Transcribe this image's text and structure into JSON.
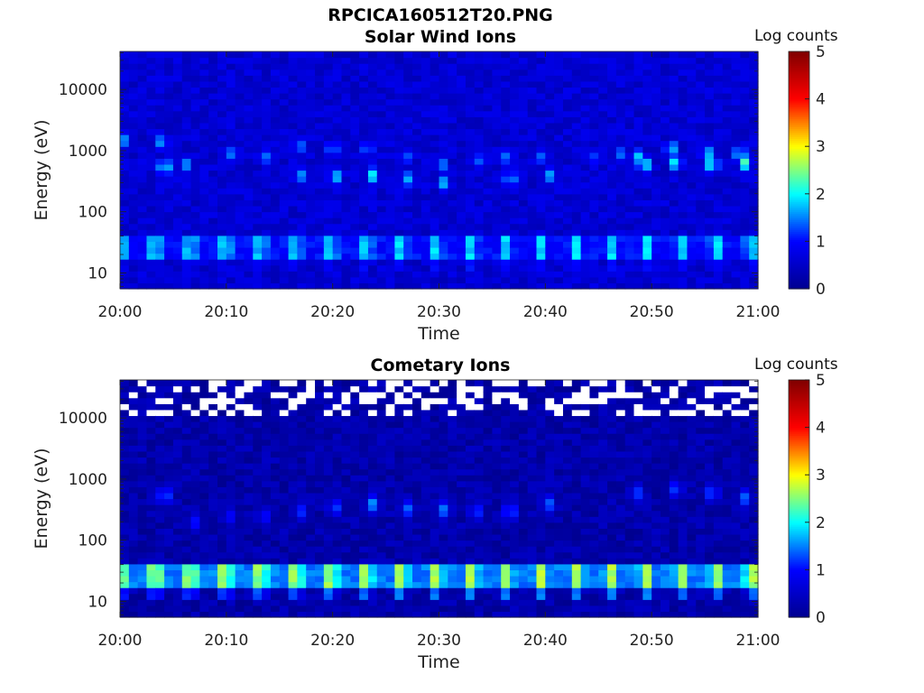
{
  "figure_title": "RPCICA160512T20.PNG",
  "colors": {
    "colormap": [
      "#00008f",
      "#0000ff",
      "#00ffff",
      "#ffff00",
      "#ff0000",
      "#800000"
    ],
    "missing": "#ffffff",
    "axis": "#222222"
  },
  "chart_data": [
    {
      "type": "heatmap",
      "title": "Solar Wind Ions",
      "xlabel": "Time",
      "ylabel": "Energy (eV)",
      "xlim": [
        "20:00",
        "21:00"
      ],
      "xticks": [
        "20:00",
        "20:10",
        "20:20",
        "20:30",
        "20:40",
        "20:50",
        "21:00"
      ],
      "yscale": "log",
      "ylim": [
        5.5,
        42000
      ],
      "yticks": [
        10,
        100,
        1000,
        10000
      ],
      "ytick_labels": [
        "10",
        "100",
        "1000",
        "10000"
      ],
      "colorbar": {
        "title": "Log counts",
        "range": [
          0,
          5
        ],
        "ticks": [
          "0",
          "1",
          "2",
          "3",
          "4",
          "5"
        ]
      },
      "background_level": 0.6,
      "low_energy_band": {
        "energy_range_eV": [
          18,
          42
        ],
        "level": 1.85
      },
      "bursts": [
        {
          "t": 0.5,
          "e": 1500,
          "level": 1.6
        },
        {
          "t": 4,
          "e": 1400,
          "level": 1.75
        },
        {
          "t": 4.2,
          "e": 550,
          "level": 2.1
        },
        {
          "t": 6.3,
          "e": 600,
          "level": 1.6
        },
        {
          "t": 10.3,
          "e": 900,
          "level": 1.5
        },
        {
          "t": 13.5,
          "e": 800,
          "level": 1.6
        },
        {
          "t": 16.8,
          "e": 1200,
          "level": 1.6
        },
        {
          "t": 17,
          "e": 400,
          "level": 1.6
        },
        {
          "t": 20,
          "e": 1100,
          "level": 1.65
        },
        {
          "t": 20.2,
          "e": 380,
          "level": 1.9
        },
        {
          "t": 23.3,
          "e": 1100,
          "level": 1.6
        },
        {
          "t": 23.8,
          "e": 400,
          "level": 2.0
        },
        {
          "t": 26.8,
          "e": 800,
          "level": 1.5
        },
        {
          "t": 27,
          "e": 350,
          "level": 1.7
        },
        {
          "t": 30.2,
          "e": 600,
          "level": 1.6
        },
        {
          "t": 30.5,
          "e": 300,
          "level": 1.75
        },
        {
          "t": 33.5,
          "e": 700,
          "level": 1.5
        },
        {
          "t": 36.5,
          "e": 800,
          "level": 1.6
        },
        {
          "t": 36.7,
          "e": 350,
          "level": 1.8
        },
        {
          "t": 39.8,
          "e": 800,
          "level": 1.5
        },
        {
          "t": 40.3,
          "e": 400,
          "level": 1.7
        },
        {
          "t": 44.3,
          "e": 800,
          "level": 1.4
        },
        {
          "t": 47,
          "e": 900,
          "level": 1.45
        },
        {
          "t": 48.6,
          "e": 800,
          "level": 1.9
        },
        {
          "t": 49.3,
          "e": 600,
          "level": 2.1
        },
        {
          "t": 51.8,
          "e": 1100,
          "level": 1.9
        },
        {
          "t": 52.3,
          "e": 650,
          "level": 2.1
        },
        {
          "t": 55.2,
          "e": 900,
          "level": 1.9
        },
        {
          "t": 55.7,
          "e": 600,
          "level": 2.2
        },
        {
          "t": 58.3,
          "e": 900,
          "level": 1.9
        },
        {
          "t": 58.8,
          "e": 650,
          "level": 2.3
        }
      ]
    },
    {
      "type": "heatmap",
      "title": "Cometary Ions",
      "xlabel": "Time",
      "ylabel": "Energy (eV)",
      "xlim": [
        "20:00",
        "21:00"
      ],
      "xticks": [
        "20:00",
        "20:10",
        "20:20",
        "20:30",
        "20:40",
        "20:50",
        "21:00"
      ],
      "yscale": "log",
      "ylim": [
        5.5,
        42000
      ],
      "yticks": [
        10,
        100,
        1000,
        10000
      ],
      "ytick_labels": [
        "10",
        "100",
        "1000",
        "10000"
      ],
      "colorbar": {
        "title": "Log counts",
        "range": [
          0,
          5
        ],
        "ticks": [
          "0",
          "1",
          "2",
          "3",
          "4",
          "5"
        ]
      },
      "background_level": 0.25,
      "low_energy_band": {
        "energy_range_eV": [
          18,
          42
        ],
        "level": 2.7
      },
      "missing_data_above_eV": 11000,
      "bursts": [
        {
          "t": 4.2,
          "e": 550,
          "level": 1.5
        },
        {
          "t": 7,
          "e": 200,
          "level": 1.1
        },
        {
          "t": 10.3,
          "e": 250,
          "level": 1.0
        },
        {
          "t": 13.5,
          "e": 250,
          "level": 1.1
        },
        {
          "t": 17,
          "e": 300,
          "level": 1.2
        },
        {
          "t": 20.2,
          "e": 350,
          "level": 1.3
        },
        {
          "t": 23.8,
          "e": 400,
          "level": 1.6
        },
        {
          "t": 27,
          "e": 330,
          "level": 1.4
        },
        {
          "t": 30.5,
          "e": 320,
          "level": 1.5
        },
        {
          "t": 33.5,
          "e": 300,
          "level": 1.3
        },
        {
          "t": 36.7,
          "e": 300,
          "level": 1.5
        },
        {
          "t": 40.3,
          "e": 400,
          "level": 1.4
        },
        {
          "t": 48.6,
          "e": 600,
          "level": 1.3
        },
        {
          "t": 52.3,
          "e": 700,
          "level": 1.3
        },
        {
          "t": 55.7,
          "e": 600,
          "level": 1.4
        },
        {
          "t": 58.8,
          "e": 500,
          "level": 1.4
        }
      ]
    }
  ]
}
